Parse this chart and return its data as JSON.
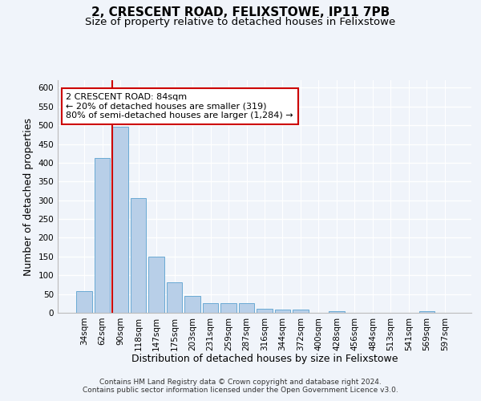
{
  "title": "2, CRESCENT ROAD, FELIXSTOWE, IP11 7PB",
  "subtitle": "Size of property relative to detached houses in Felixstowe",
  "xlabel": "Distribution of detached houses by size in Felixstowe",
  "ylabel": "Number of detached properties",
  "footer_line1": "Contains HM Land Registry data © Crown copyright and database right 2024.",
  "footer_line2": "Contains public sector information licensed under the Open Government Licence v3.0.",
  "bar_labels": [
    "34sqm",
    "62sqm",
    "90sqm",
    "118sqm",
    "147sqm",
    "175sqm",
    "203sqm",
    "231sqm",
    "259sqm",
    "287sqm",
    "316sqm",
    "344sqm",
    "372sqm",
    "400sqm",
    "428sqm",
    "456sqm",
    "484sqm",
    "513sqm",
    "541sqm",
    "569sqm",
    "597sqm"
  ],
  "bar_heights": [
    58,
    412,
    495,
    306,
    150,
    82,
    45,
    25,
    25,
    25,
    10,
    8,
    8,
    0,
    5,
    0,
    0,
    0,
    0,
    5,
    0
  ],
  "bar_color": "#b8cfe8",
  "bar_edge_color": "#6aaad4",
  "red_line_index": 2,
  "annotation_text": "2 CRESCENT ROAD: 84sqm\n← 20% of detached houses are smaller (319)\n80% of semi-detached houses are larger (1,284) →",
  "annotation_box_color": "#ffffff",
  "annotation_border_color": "#cc0000",
  "ylim": [
    0,
    620
  ],
  "yticks": [
    0,
    50,
    100,
    150,
    200,
    250,
    300,
    350,
    400,
    450,
    500,
    550,
    600
  ],
  "background_color": "#f0f4fa",
  "plot_bg_color": "#f0f4fa",
  "grid_color": "#ffffff",
  "title_fontsize": 11,
  "subtitle_fontsize": 9.5,
  "axis_label_fontsize": 9,
  "tick_fontsize": 7.5,
  "annotation_fontsize": 8,
  "footer_fontsize": 6.5
}
